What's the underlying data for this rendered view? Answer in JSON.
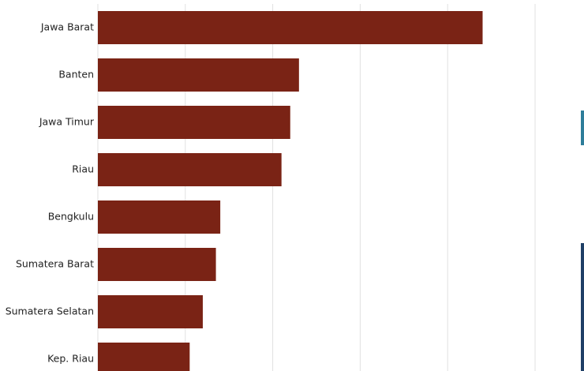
{
  "chart_data": {
    "type": "bar",
    "orientation": "horizontal",
    "categories": [
      "Jawa Barat",
      "Banten",
      "Jawa Timur",
      "Riau",
      "Bengkulu",
      "Sumatera Barat",
      "Sumatera Selatan",
      "Kep. Riau"
    ],
    "values": [
      4.4,
      2.3,
      2.2,
      2.1,
      1.4,
      1.35,
      1.2,
      1.05
    ],
    "color": "#7a2315",
    "xlim": [
      0,
      5
    ],
    "xticks": [
      0,
      1,
      2,
      3,
      4,
      5
    ],
    "grid": true
  }
}
